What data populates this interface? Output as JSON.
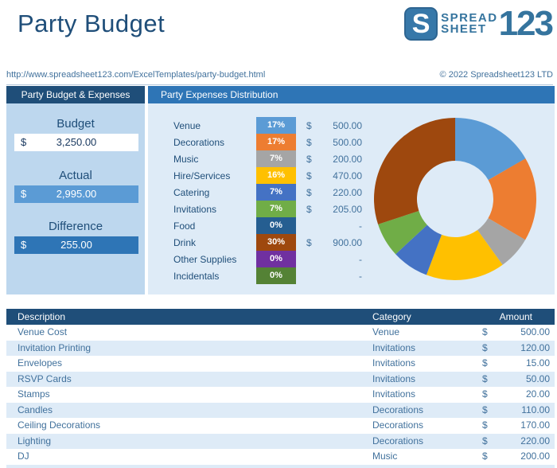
{
  "header": {
    "title": "Party Budget",
    "logo": {
      "s": "S",
      "line1": "SPREAD",
      "line2": "SHEET",
      "number": "123"
    }
  },
  "meta": {
    "url": "http://www.spreadsheet123.com/ExcelTemplates/party-budget.html",
    "copyright": "© 2022 Spreadsheet123 LTD"
  },
  "summary": {
    "panel_title": "Party Budget & Expenses",
    "fields": [
      {
        "label": "Budget",
        "currency": "$",
        "value": "3,250.00",
        "style": "input",
        "editable": true
      },
      {
        "label": "Actual",
        "currency": "$",
        "value": "2,995.00",
        "style": "actual",
        "editable": false
      },
      {
        "label": "Difference",
        "currency": "$",
        "value": "255.00",
        "style": "difference",
        "editable": false
      }
    ]
  },
  "distribution": {
    "panel_title": "Party Expenses Distribution",
    "rows": [
      {
        "label": "Venue",
        "percent": "17%",
        "color": "#5B9BD5",
        "currency": "$",
        "amount": "500.00"
      },
      {
        "label": "Decorations",
        "percent": "17%",
        "color": "#ED7D31",
        "currency": "$",
        "amount": "500.00"
      },
      {
        "label": "Music",
        "percent": "7%",
        "color": "#A5A5A5",
        "currency": "$",
        "amount": "200.00"
      },
      {
        "label": "Hire/Services",
        "percent": "16%",
        "color": "#FFC000",
        "currency": "$",
        "amount": "470.00"
      },
      {
        "label": "Catering",
        "percent": "7%",
        "color": "#4472C4",
        "currency": "$",
        "amount": "220.00"
      },
      {
        "label": "Invitations",
        "percent": "7%",
        "color": "#70AD47",
        "currency": "$",
        "amount": "205.00"
      },
      {
        "label": "Food",
        "percent": "0%",
        "color": "#255E91",
        "currency": "",
        "amount": "-"
      },
      {
        "label": "Drink",
        "percent": "30%",
        "color": "#9E480E",
        "currency": "$",
        "amount": "900.00"
      },
      {
        "label": "Other Supplies",
        "percent": "0%",
        "color": "#7030A0",
        "currency": "",
        "amount": "-"
      },
      {
        "label": "Incidentals",
        "percent": "0%",
        "color": "#548235",
        "currency": "",
        "amount": "-"
      }
    ]
  },
  "chart_data": {
    "type": "pie",
    "subtype": "donut",
    "title": "Party Expenses Distribution",
    "categories": [
      "Venue",
      "Decorations",
      "Music",
      "Hire/Services",
      "Catering",
      "Invitations",
      "Food",
      "Drink",
      "Other Supplies",
      "Incidentals"
    ],
    "values": [
      500,
      500,
      200,
      470,
      220,
      205,
      0,
      900,
      0,
      0
    ],
    "percent_labels": [
      "17%",
      "17%",
      "7%",
      "16%",
      "7%",
      "7%",
      "0%",
      "30%",
      "0%",
      "0%"
    ],
    "colors": [
      "#5B9BD5",
      "#ED7D31",
      "#A5A5A5",
      "#FFC000",
      "#4472C4",
      "#70AD47",
      "#255E91",
      "#9E480E",
      "#7030A0",
      "#548235"
    ],
    "total": 2995,
    "start_angle_deg": -90,
    "direction": "clockwise",
    "inner_radius_ratio": 0.47,
    "legend_position": "left"
  },
  "table": {
    "headers": [
      "Description",
      "Category",
      "Amount"
    ],
    "rows": [
      {
        "description": "Venue Cost",
        "category": "Venue",
        "currency": "$",
        "amount": "500.00"
      },
      {
        "description": "Invitation Printing",
        "category": "Invitations",
        "currency": "$",
        "amount": "120.00"
      },
      {
        "description": "Envelopes",
        "category": "Invitations",
        "currency": "$",
        "amount": "15.00"
      },
      {
        "description": "RSVP Cards",
        "category": "Invitations",
        "currency": "$",
        "amount": "50.00"
      },
      {
        "description": "Stamps",
        "category": "Invitations",
        "currency": "$",
        "amount": "20.00"
      },
      {
        "description": "Candles",
        "category": "Decorations",
        "currency": "$",
        "amount": "110.00"
      },
      {
        "description": "Ceiling Decorations",
        "category": "Decorations",
        "currency": "$",
        "amount": "170.00"
      },
      {
        "description": "Lighting",
        "category": "Decorations",
        "currency": "$",
        "amount": "220.00"
      },
      {
        "description": "DJ",
        "category": "Music",
        "currency": "$",
        "amount": "200.00"
      }
    ]
  },
  "theme": {
    "navy": "#1F4E79",
    "medium_blue": "#2E75B6",
    "panel_left_bg": "#BDD7EE",
    "panel_right_bg": "#DEEBF7",
    "actual_bg": "#5B9BD5",
    "stripe": "#DEEBF7",
    "text_blue": "#41719C",
    "logo_blue": "#35749E"
  }
}
